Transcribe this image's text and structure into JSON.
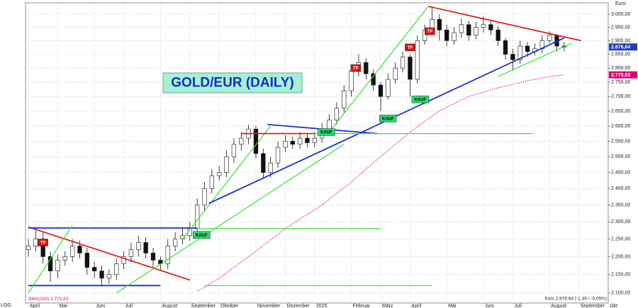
{
  "chart_data": {
    "type": "candlestick",
    "title": "GOLD/EUR (DAILY)",
    "y_unit": "Euro",
    "scale_label": "LOG",
    "log_scale": true,
    "grid": true,
    "categories": [
      "April",
      null,
      null,
      null,
      "Mai",
      null,
      null,
      null,
      null,
      "Juni",
      null,
      null,
      null,
      "Juli",
      null,
      null,
      null,
      null,
      "August",
      null,
      null,
      null,
      "September",
      null,
      null,
      null,
      "Oktober",
      null,
      null,
      null,
      null,
      "November",
      null,
      null,
      null,
      "Dezember",
      null,
      null,
      null,
      "2025",
      null,
      null,
      null,
      null,
      "Februar",
      null,
      null,
      null,
      "März",
      null,
      null,
      null,
      "April",
      null,
      null,
      null,
      null,
      "Mai",
      null,
      null,
      null,
      null,
      "Juni",
      null,
      null,
      null,
      "Juli",
      null,
      null,
      null,
      null,
      "August",
      null,
      null,
      null,
      "September",
      null,
      null,
      null,
      "Okt"
    ],
    "ohlc": {
      "color_up": "#ffffff",
      "color_down": "#111111",
      "open": [
        2220,
        2230,
        2250,
        2200,
        2160,
        2190,
        2200,
        2230,
        2210,
        2170,
        2160,
        2140,
        2150,
        2180,
        2200,
        2220,
        2240,
        2210,
        2190,
        2180,
        2230,
        2250,
        2260,
        2280,
        2350,
        2400,
        2440,
        2450,
        2500,
        2540,
        2560,
        2590,
        2510,
        2450,
        2480,
        2530,
        2550,
        2540,
        2560,
        2545,
        2560,
        2590,
        2620,
        2660,
        2720,
        2790,
        2820,
        2780,
        2740,
        2700,
        2760,
        2800,
        2840,
        2760,
        2900,
        2940,
        2980,
        2940,
        2900,
        2930,
        2960,
        2920,
        2950,
        2960,
        2940,
        2900,
        2850,
        2830,
        2880,
        2860,
        2870,
        2900,
        2920,
        2880,
        null,
        null,
        null,
        null,
        null
      ],
      "high": [
        2250,
        2285,
        2270,
        2215,
        2205,
        2215,
        2250,
        2245,
        2225,
        2185,
        2175,
        2165,
        2195,
        2215,
        2240,
        2260,
        2255,
        2225,
        2200,
        2250,
        2270,
        2280,
        2300,
        2370,
        2420,
        2460,
        2470,
        2520,
        2560,
        2580,
        2605,
        2600,
        2525,
        2500,
        2550,
        2570,
        2565,
        2580,
        2575,
        2580,
        2610,
        2640,
        2680,
        2740,
        2810,
        2850,
        2835,
        2795,
        2750,
        2780,
        2820,
        2860,
        2850,
        2920,
        2960,
        3030,
        3000,
        2960,
        2950,
        2985,
        2975,
        2970,
        2990,
        2975,
        2955,
        2910,
        2870,
        2900,
        2895,
        2890,
        2920,
        2935,
        2925,
        2895,
        null,
        null,
        null,
        null,
        null
      ],
      "low": [
        2200,
        2215,
        2180,
        2130,
        2140,
        2175,
        2185,
        2195,
        2150,
        2140,
        2120,
        2125,
        2135,
        2165,
        2185,
        2200,
        2195,
        2170,
        2160,
        2165,
        2215,
        2235,
        2245,
        2265,
        2330,
        2385,
        2425,
        2435,
        2480,
        2520,
        2540,
        2495,
        2430,
        2435,
        2465,
        2515,
        2525,
        2525,
        2530,
        2530,
        2545,
        2575,
        2605,
        2645,
        2700,
        2770,
        2760,
        2720,
        2650,
        2690,
        2745,
        2785,
        2700,
        2745,
        2885,
        2925,
        2900,
        2880,
        2885,
        2910,
        2900,
        2905,
        2930,
        2920,
        2880,
        2830,
        2790,
        2815,
        2840,
        2845,
        2855,
        2890,
        2860,
        2860,
        null,
        null,
        null,
        null,
        null
      ],
      "close": [
        2230,
        2250,
        2200,
        2160,
        2190,
        2200,
        2230,
        2210,
        2170,
        2160,
        2140,
        2150,
        2180,
        2200,
        2220,
        2240,
        2210,
        2190,
        2180,
        2230,
        2250,
        2260,
        2280,
        2350,
        2400,
        2440,
        2450,
        2500,
        2540,
        2560,
        2590,
        2510,
        2450,
        2480,
        2530,
        2550,
        2540,
        2560,
        2545,
        2560,
        2590,
        2620,
        2660,
        2720,
        2790,
        2820,
        2780,
        2740,
        2700,
        2760,
        2800,
        2840,
        2760,
        2900,
        2940,
        2980,
        2940,
        2900,
        2930,
        2960,
        2920,
        2950,
        2960,
        2940,
        2900,
        2850,
        2830,
        2880,
        2860,
        2870,
        2900,
        2920,
        2880,
        2876.64,
        null,
        null,
        null,
        null,
        null
      ]
    },
    "sma": {
      "label": "SMA(200)",
      "value_label": "2.775,83",
      "color": "#e0007a",
      "values": [
        null,
        null,
        null,
        null,
        null,
        null,
        null,
        null,
        null,
        null,
        null,
        null,
        null,
        null,
        null,
        null,
        null,
        null,
        null,
        null,
        null,
        null,
        null,
        2105,
        2115,
        2128,
        2140,
        2155,
        2170,
        2185,
        2200,
        2215,
        2232,
        2248,
        2264,
        2280,
        2294,
        2308,
        2322,
        2336,
        2350,
        2368,
        2385,
        2402,
        2420,
        2440,
        2460,
        2480,
        2500,
        2520,
        2540,
        2560,
        2580,
        2598,
        2615,
        2633,
        2650,
        2663,
        2675,
        2688,
        2700,
        2708,
        2715,
        2723,
        2730,
        2736,
        2742,
        2748,
        2755,
        2760,
        2765,
        2769,
        2773,
        2775.83,
        null,
        null,
        null,
        null,
        null
      ]
    },
    "quote_text": "Kurs 2.876,64 (-1,39 / -0,05%)",
    "price_tags": [
      {
        "label": "2.876,64",
        "value": 2876.64,
        "color": "#1f3fbf"
      },
      {
        "label": "2.775,83",
        "value": 2775.83,
        "color": "#e0007a"
      }
    ],
    "trendlines": [
      {
        "color": "#e02020",
        "x": [
          0,
          22
        ],
        "values": [
          2285,
          2135
        ]
      },
      {
        "color": "#1a2fd0",
        "x": [
          0,
          23
        ],
        "values": [
          2282,
          2282
        ]
      },
      {
        "color": "#1a2fd0",
        "x": [
          0,
          18
        ],
        "values": [
          2120,
          2120
        ]
      },
      {
        "color": "#33e033",
        "x": [
          24,
          55
        ],
        "values": [
          2120,
          2120
        ]
      },
      {
        "color": "#33e033",
        "x": [
          23,
          48
        ],
        "values": [
          2280,
          2280
        ]
      },
      {
        "color": "#33e033",
        "x": [
          0,
          6
        ],
        "values": [
          2100,
          2290
        ]
      },
      {
        "color": "#33e033",
        "x": [
          12,
          43
        ],
        "values": [
          2100,
          2540
        ]
      },
      {
        "color": "#33e033",
        "x": [
          21,
          33
        ],
        "values": [
          2250,
          2600
        ]
      },
      {
        "color": "#1a2fd0",
        "x": [
          24.6,
          73
        ],
        "values": [
          2355,
          2910
        ]
      },
      {
        "color": "#1a2fd0",
        "x": [
          32.6,
          47.5
        ],
        "values": [
          2605,
          2575
        ]
      },
      {
        "color": "#e02020",
        "x": [
          29,
          39
        ],
        "values": [
          2575,
          2575
        ]
      },
      {
        "color": "#33e033",
        "x": [
          39,
          68.7
        ],
        "values": [
          2575,
          2575
        ]
      },
      {
        "color": "#33e033",
        "x": [
          41,
          54.5
        ],
        "values": [
          2580,
          3030
        ]
      },
      {
        "color": "#e02020",
        "x": [
          54.5,
          75.3
        ],
        "values": [
          3030,
          2900
        ]
      },
      {
        "color": "#33e033",
        "x": [
          64,
          74
        ],
        "values": [
          2770,
          2890
        ]
      }
    ],
    "markers": [
      {
        "label": "TP",
        "color": "#e01010",
        "x": 2,
        "value": 2240
      },
      {
        "label": "TP",
        "color": "#e01010",
        "x": 44.6,
        "value": 2800
      },
      {
        "label": "TP",
        "color": "#e01010",
        "x": 52,
        "value": 2875
      },
      {
        "label": "TP",
        "color": "#e01010",
        "x": 54.7,
        "value": 2935
      },
      {
        "label": "KAUF",
        "color": "#22dd66",
        "x": 23.6,
        "value": 2262
      },
      {
        "label": "KAUF",
        "color": "#22dd66",
        "x": 40.6,
        "value": 2580
      },
      {
        "label": "KAUF",
        "color": "#22dd66",
        "x": 49,
        "value": 2625
      },
      {
        "label": "KAUF",
        "color": "#22dd66",
        "x": 53.4,
        "value": 2690
      }
    ],
    "ylim": [
      2075,
      3041
    ],
    "yticks": [
      {
        "value": 2100,
        "label": "2.100,00"
      },
      {
        "value": 2150,
        "label": "2.150,00"
      },
      {
        "value": 2200,
        "label": "2.200,00"
      },
      {
        "value": 2250,
        "label": "2.250,00"
      },
      {
        "value": 2300,
        "label": "2.300,00"
      },
      {
        "value": 2350,
        "label": "2.350,00"
      },
      {
        "value": 2400,
        "label": "2.400,00"
      },
      {
        "value": 2450,
        "label": "2.450,00"
      },
      {
        "value": 2500,
        "label": "2.500,00"
      },
      {
        "value": 2550,
        "label": "2.550,00"
      },
      {
        "value": 2600,
        "label": "2.600,00"
      },
      {
        "value": 2650,
        "label": "2.650,00"
      },
      {
        "value": 2700,
        "label": "2.700,00"
      },
      {
        "value": 2750,
        "label": "2.750,00"
      },
      {
        "value": 2800,
        "label": "2.800,00"
      },
      {
        "value": 2850,
        "label": "2.850,00"
      },
      {
        "value": 2900,
        "label": "2.900,00"
      },
      {
        "value": 2950,
        "label": "2.950,00"
      },
      {
        "value": 3000,
        "label": "3.000,00"
      }
    ]
  }
}
